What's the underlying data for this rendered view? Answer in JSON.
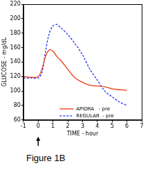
{
  "chart_data": {
    "type": "line",
    "caption": "Figure 1B",
    "x_label": "TIME - hour",
    "y_label": "GLUCOSE - mg/dL",
    "xlim": [
      -1,
      7
    ],
    "xticks": [
      -1,
      0,
      1,
      2,
      3,
      4,
      5,
      6,
      7
    ],
    "ylim": [
      60,
      220
    ],
    "yticks": [
      60,
      80,
      100,
      120,
      140,
      160,
      180,
      200,
      220
    ],
    "grid": false,
    "legend": "lower center",
    "annotations": [
      {
        "x": 0,
        "type": "arrow"
      }
    ],
    "series": [
      {
        "name": "APIDRA   - pre",
        "color": "#ee3a10",
        "line_style": "solid",
        "x": [
          -1,
          -0.5,
          0,
          0.25,
          0.5,
          0.75,
          1,
          1.25,
          1.5,
          2,
          2.5,
          3,
          3.5,
          4,
          4.5,
          5,
          5.5,
          6
        ],
        "values": [
          120,
          119,
          120,
          130,
          148,
          157,
          155,
          148,
          143,
          130,
          118,
          112,
          108,
          107,
          106,
          103,
          102,
          101
        ]
      },
      {
        "name": "REGULAR  - pre",
        "color": "#1f33ff",
        "line_style": "dashed",
        "x": [
          -1,
          -0.5,
          0,
          0.25,
          0.5,
          0.75,
          1,
          1.25,
          1.5,
          2,
          2.5,
          3,
          3.5,
          4,
          4.5,
          5,
          5.5,
          6
        ],
        "values": [
          118,
          118,
          118,
          125,
          155,
          180,
          190,
          192,
          188,
          178,
          165,
          150,
          130,
          115,
          100,
          92,
          85,
          80
        ]
      }
    ]
  }
}
